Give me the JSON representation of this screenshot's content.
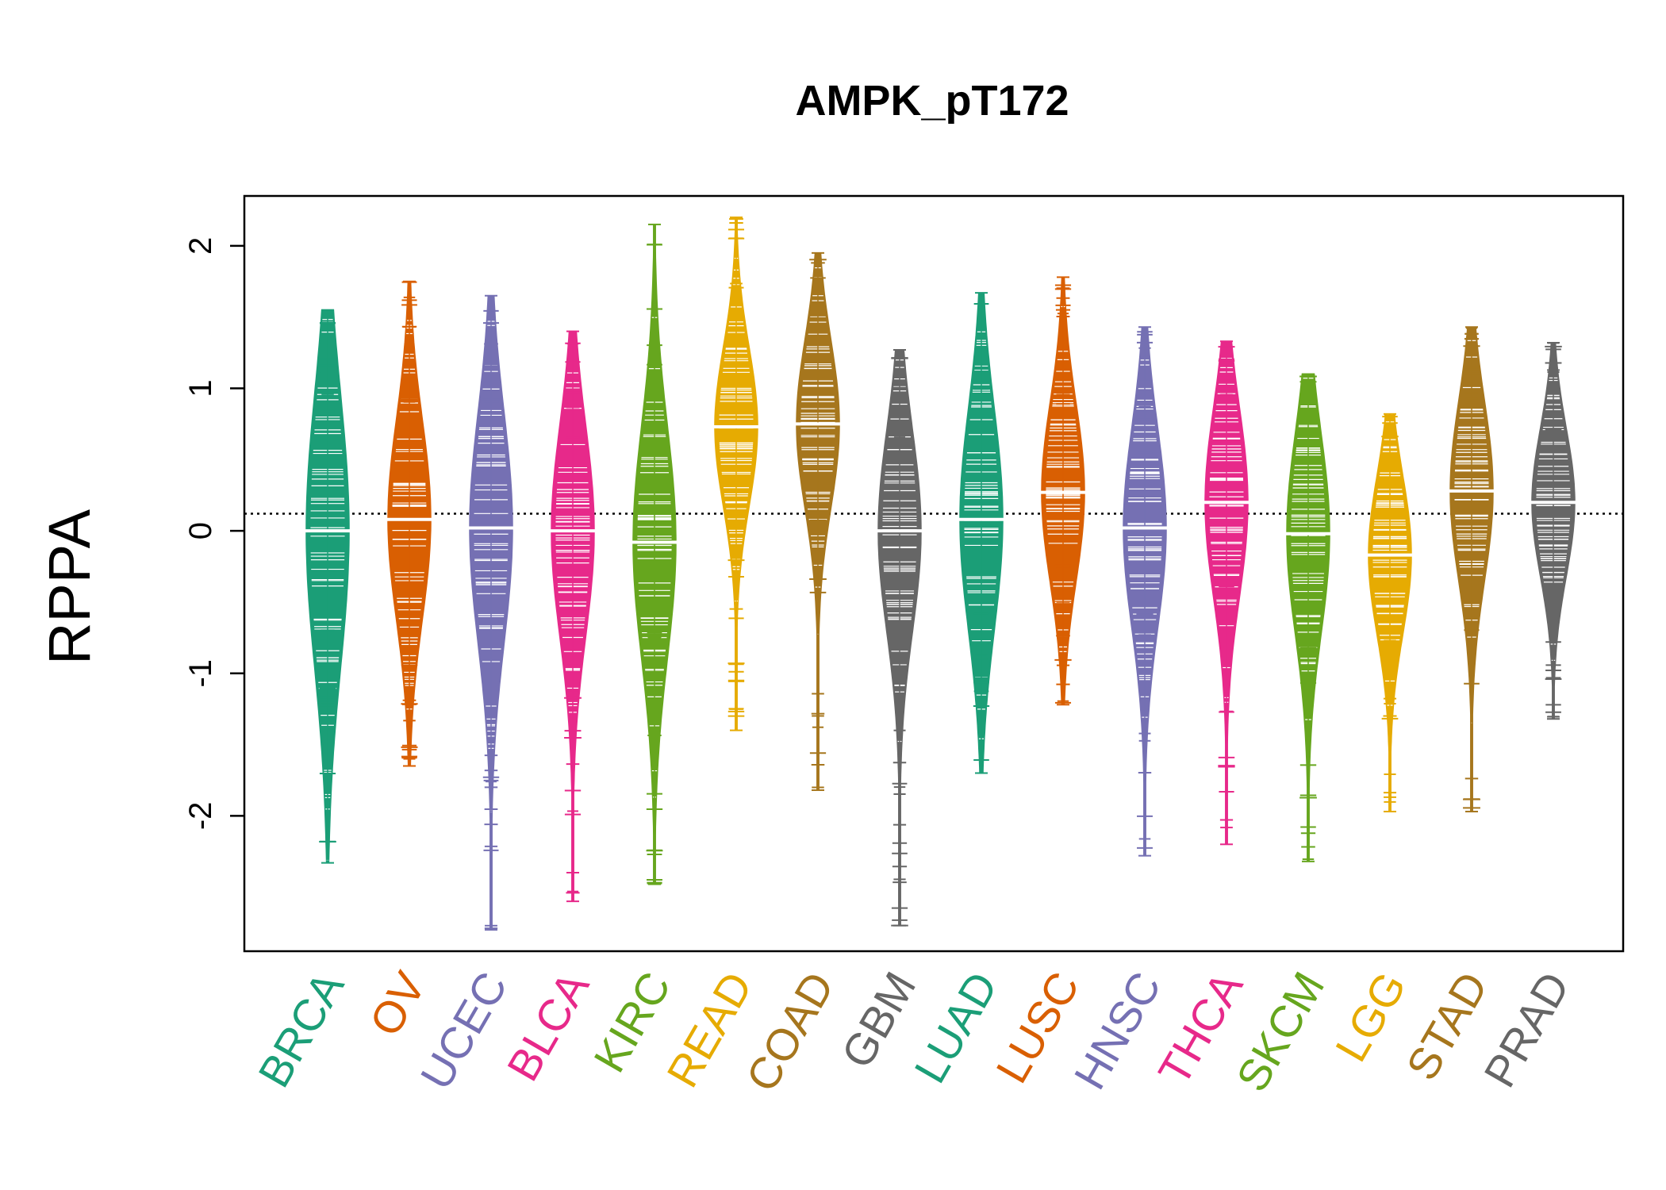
{
  "chart_data": {
    "type": "violin",
    "title": "AMPK_pT172",
    "ylabel": "RPPA",
    "xlabel": "",
    "ylim": [
      -2.95,
      2.35
    ],
    "yticks": [
      -2,
      -1,
      0,
      1,
      2
    ],
    "ytick_labels": [
      "-2",
      "-1",
      "0",
      "1",
      "2"
    ],
    "reference_line": 0.12,
    "grid": false,
    "legend": "none",
    "categories": [
      "BRCA",
      "OV",
      "UCEC",
      "BLCA",
      "KIRC",
      "READ",
      "COAD",
      "GBM",
      "LUAD",
      "LUSC",
      "HNSC",
      "THCA",
      "SKCM",
      "LGG",
      "STAD",
      "PRAD"
    ],
    "colors": [
      "#1B9E77",
      "#D95F02",
      "#7570B3",
      "#E7298A",
      "#66A61E",
      "#E6AB02",
      "#A6761D",
      "#666666",
      "#1B9E77",
      "#D95F02",
      "#7570B3",
      "#E7298A",
      "#66A61E",
      "#E6AB02",
      "#A6761D",
      "#666666"
    ],
    "series": [
      {
        "median": 0.0,
        "q1": -0.6,
        "q3": 0.7,
        "min": -2.33,
        "max": 1.55
      },
      {
        "median": 0.08,
        "q1": -0.4,
        "q3": 0.55,
        "min": -1.65,
        "max": 1.75
      },
      {
        "median": 0.02,
        "q1": -0.5,
        "q3": 0.6,
        "min": -2.8,
        "max": 1.65
      },
      {
        "median": 0.0,
        "q1": -0.5,
        "q3": 0.5,
        "min": -2.6,
        "max": 1.4
      },
      {
        "median": -0.08,
        "q1": -0.6,
        "q3": 0.5,
        "min": -2.48,
        "max": 2.15
      },
      {
        "median": 0.73,
        "q1": 0.35,
        "q3": 1.1,
        "min": -1.4,
        "max": 2.2
      },
      {
        "median": 0.75,
        "q1": 0.35,
        "q3": 1.15,
        "min": -1.82,
        "max": 1.95
      },
      {
        "median": 0.0,
        "q1": -0.5,
        "q3": 0.45,
        "min": -2.77,
        "max": 1.27
      },
      {
        "median": 0.08,
        "q1": -0.45,
        "q3": 0.6,
        "min": -1.7,
        "max": 1.67
      },
      {
        "median": 0.27,
        "q1": -0.15,
        "q3": 0.7,
        "min": -1.22,
        "max": 1.78
      },
      {
        "median": 0.02,
        "q1": -0.45,
        "q3": 0.5,
        "min": -2.28,
        "max": 1.43
      },
      {
        "median": 0.2,
        "q1": -0.25,
        "q3": 0.65,
        "min": -2.2,
        "max": 1.33
      },
      {
        "median": -0.02,
        "q1": -0.5,
        "q3": 0.45,
        "min": -2.32,
        "max": 1.1
      },
      {
        "median": -0.17,
        "q1": -0.55,
        "q3": 0.2,
        "min": -1.97,
        "max": 0.82
      },
      {
        "median": 0.28,
        "q1": -0.15,
        "q3": 0.7,
        "min": -1.97,
        "max": 1.43
      },
      {
        "median": 0.2,
        "q1": -0.15,
        "q3": 0.55,
        "min": -1.32,
        "max": 1.32
      }
    ]
  }
}
